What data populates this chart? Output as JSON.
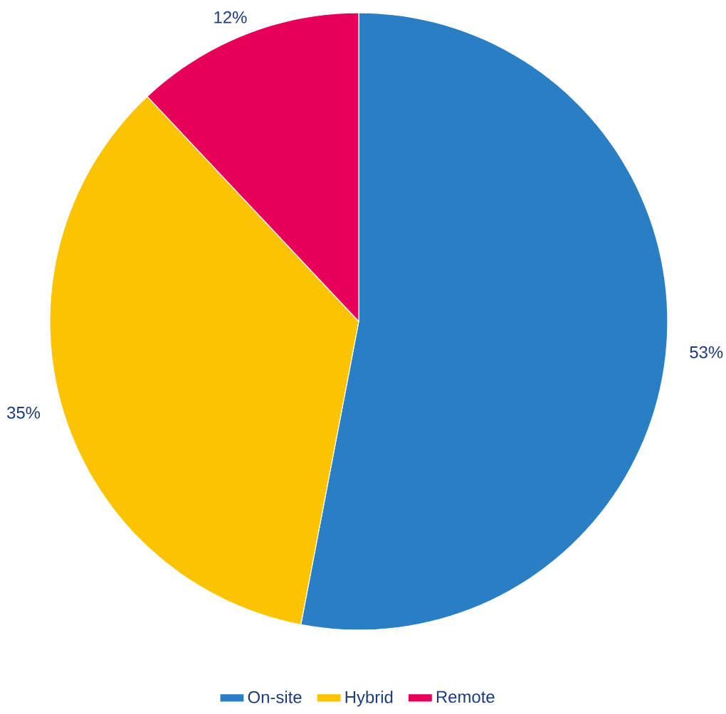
{
  "chart_data": {
    "type": "pie",
    "categories": [
      "On-site",
      "Hybrid",
      "Remote"
    ],
    "values": [
      53,
      35,
      12
    ],
    "colors": [
      "#2a7fc4",
      "#fbc300",
      "#e6005a"
    ],
    "value_labels": [
      "53%",
      "35%",
      "12%"
    ],
    "legend": "bottom"
  }
}
